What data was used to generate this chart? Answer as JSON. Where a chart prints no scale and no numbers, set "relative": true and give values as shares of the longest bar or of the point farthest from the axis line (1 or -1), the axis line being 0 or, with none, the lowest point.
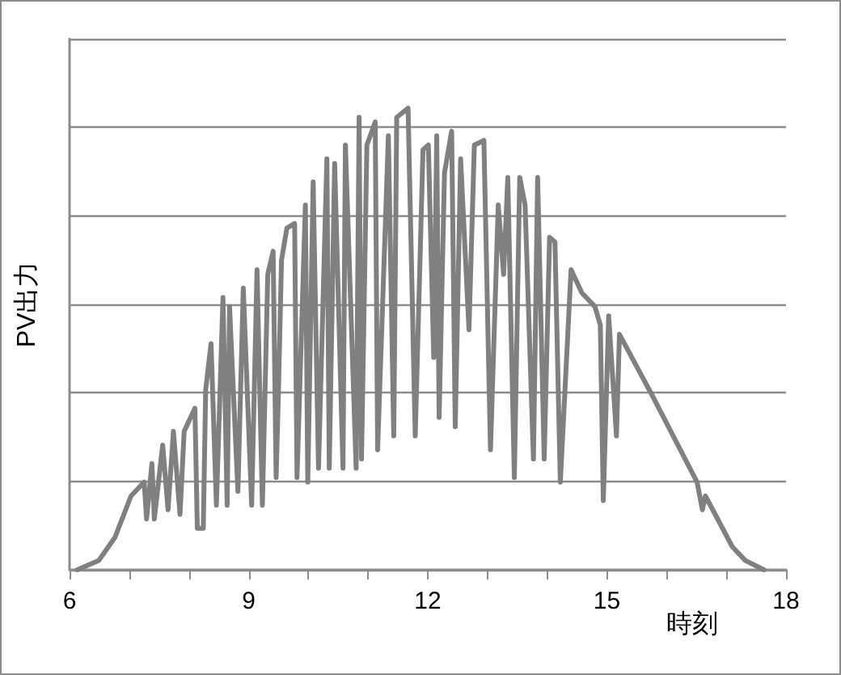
{
  "chart_data": {
    "type": "line",
    "xlabel": "時刻",
    "ylabel": "PV出力",
    "relative": true,
    "grid": "y",
    "marker": "none",
    "line_style": "solid",
    "xlim": [
      6,
      18
    ],
    "xticks": [
      6,
      {
        "value": 7,
        "label": null
      },
      {
        "value": 8,
        "label": null
      },
      9,
      {
        "value": 10,
        "label": null
      },
      {
        "value": 11,
        "label": null
      },
      12,
      {
        "value": 13,
        "label": null
      },
      {
        "value": 14,
        "label": null
      },
      15,
      {
        "value": 16,
        "label": null
      },
      {
        "value": 17,
        "label": null
      },
      18
    ],
    "series": [
      {
        "color": "#808080",
        "x": [
          6.13,
          6.49,
          6.76,
          7.03,
          7.25,
          7.29,
          7.38,
          7.42,
          7.56,
          7.65,
          7.74,
          7.85,
          7.92,
          8.1,
          8.14,
          8.24,
          8.28,
          8.37,
          8.46,
          8.57,
          8.64,
          8.68,
          8.82,
          8.91,
          9.05,
          9.14,
          9.23,
          9.32,
          9.41,
          9.46,
          9.5,
          9.55,
          9.64,
          9.77,
          9.81,
          9.95,
          9.99,
          10.08,
          10.17,
          10.31,
          10.35,
          10.44,
          10.58,
          10.62,
          10.8,
          10.85,
          10.89,
          10.98,
          11.12,
          11.16,
          11.34,
          11.43,
          11.48,
          11.67,
          11.79,
          11.92,
          12.01,
          12.1,
          12.15,
          12.19,
          12.28,
          12.4,
          12.46,
          12.55,
          12.69,
          12.78,
          12.94,
          13.05,
          13.18,
          13.27,
          13.34,
          13.45,
          13.54,
          13.63,
          13.77,
          13.84,
          13.95,
          14.04,
          14.13,
          14.22,
          14.31,
          14.4,
          14.58,
          14.8,
          14.89,
          14.94,
          15.03,
          15.16,
          15.21,
          15.75,
          16.51,
          16.6,
          16.65,
          17.1,
          17.32,
          17.63
        ],
        "values": [
          0,
          0.02,
          0.07,
          0.16,
          0.19,
          0.11,
          0.23,
          0.11,
          0.27,
          0.13,
          0.3,
          0.12,
          0.3,
          0.35,
          0.09,
          0.09,
          0.39,
          0.49,
          0.14,
          0.59,
          0.14,
          0.57,
          0.17,
          0.61,
          0.14,
          0.65,
          0.14,
          0.64,
          0.69,
          0.2,
          0.39,
          0.67,
          0.74,
          0.75,
          0.2,
          0.79,
          0.19,
          0.84,
          0.22,
          0.89,
          0.22,
          0.88,
          0.22,
          0.92,
          0.22,
          0.98,
          0.24,
          0.92,
          0.97,
          0.26,
          0.94,
          0.29,
          0.98,
          1.0,
          0.29,
          0.91,
          0.92,
          0.46,
          0.94,
          0.33,
          0.86,
          0.95,
          0.31,
          0.89,
          0.52,
          0.92,
          0.93,
          0.26,
          0.79,
          0.64,
          0.85,
          0.2,
          0.85,
          0.79,
          0.24,
          0.85,
          0.24,
          0.72,
          0.71,
          0.19,
          0.42,
          0.65,
          0.6,
          0.57,
          0.53,
          0.15,
          0.55,
          0.29,
          0.51,
          0.38,
          0.19,
          0.13,
          0.16,
          0.05,
          0.02,
          0
        ]
      }
    ]
  }
}
